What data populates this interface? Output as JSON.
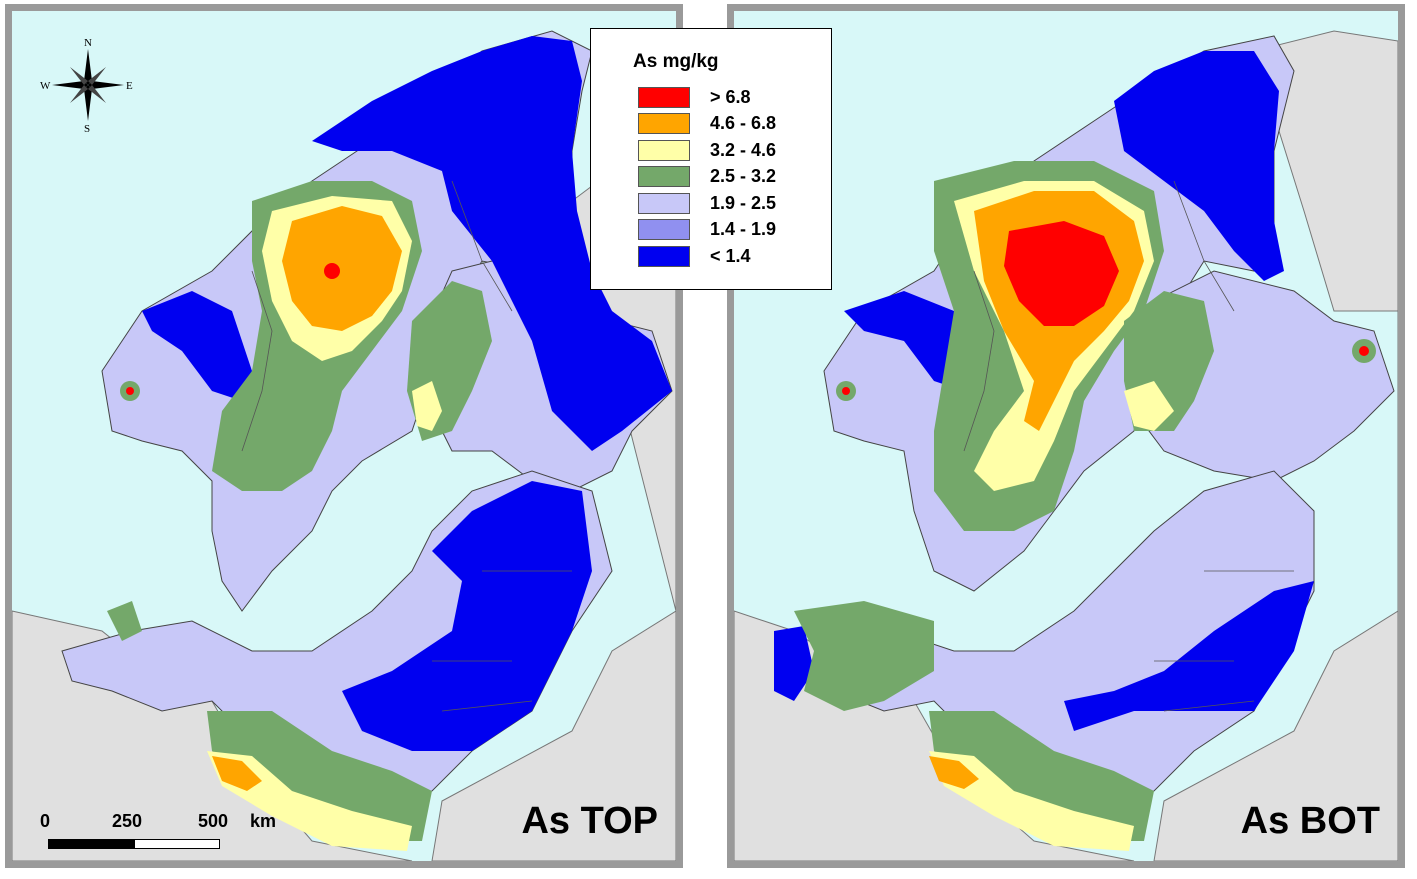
{
  "legend": {
    "title": "As mg/kg",
    "classes": [
      {
        "label": "> 6.8",
        "color": "#ff0000"
      },
      {
        "label": "4.6 - 6.8",
        "color": "#ffa500"
      },
      {
        "label": "3.2 - 4.6",
        "color": "#ffffa8"
      },
      {
        "label": "2.5 - 3.2",
        "color": "#74a86a"
      },
      {
        "label": "1.9 - 2.5",
        "color": "#c8c8f8"
      },
      {
        "label": "1.4 - 1.9",
        "color": "#9090f0"
      },
      {
        "label": "< 1.4",
        "color": "#0000f0"
      }
    ]
  },
  "panels": {
    "top": {
      "title": "As TOP"
    },
    "bot": {
      "title": "As BOT"
    }
  },
  "compass": {
    "n": "N",
    "s": "S",
    "e": "E",
    "w": "W"
  },
  "scalebar": {
    "labels": [
      "0",
      "250",
      "500"
    ],
    "unit": "km"
  },
  "colors": {
    "sea": "#d8f8f8",
    "land_outside": "#e0e0e0",
    "frame": "#9a9a9a",
    "border_lines": "#555555"
  }
}
